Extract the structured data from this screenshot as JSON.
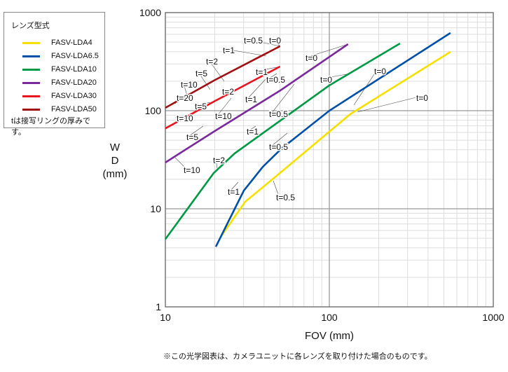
{
  "chart_data": {
    "type": "line",
    "xscale": "log",
    "yscale": "log",
    "xlabel": "FOV (mm)",
    "ylabel": [
      "W",
      "D",
      "(mm)"
    ],
    "xlim": [
      10,
      1000
    ],
    "ylim": [
      1,
      1000
    ],
    "xticks": [
      "10",
      "100",
      "1000"
    ],
    "yticks": [
      "1",
      "10",
      "100",
      "1000"
    ],
    "grid": true,
    "legend_title": "レンズ型式",
    "legend_position": "top-left outside",
    "legend_note": "tは接写リングの厚みです。",
    "series": [
      {
        "name": "FASV-LDA4",
        "color": "#f5e000",
        "points": [
          [
            22,
            5.3
          ],
          [
            30.7,
            11.8
          ],
          [
            40.4,
            17.2
          ],
          [
            61,
            30.6
          ],
          [
            134,
            92
          ],
          [
            548,
            398
          ]
        ]
      },
      {
        "name": "FASV-LDA6.5",
        "color": "#0050a8",
        "points": [
          [
            20.3,
            4.1
          ],
          [
            26.5,
            10
          ],
          [
            30.1,
            15.3
          ],
          [
            39.3,
            26.8
          ],
          [
            51,
            41
          ],
          [
            100,
            100
          ],
          [
            548,
            621
          ]
        ]
      },
      {
        "name": "FASV-LDA10",
        "color": "#009a44",
        "points": [
          [
            10,
            4.9
          ],
          [
            19.7,
            23.1
          ],
          [
            26.5,
            36.7
          ],
          [
            100,
            181
          ],
          [
            270,
            485
          ]
        ]
      },
      {
        "name": "FASV-LDA20",
        "color": "#7a2a9a",
        "points": [
          [
            10,
            29.6
          ],
          [
            12,
            36
          ],
          [
            20,
            62
          ],
          [
            50,
            160
          ],
          [
            130,
            477
          ]
        ]
      },
      {
        "name": "FASV-LDA30",
        "color": "#e8141e",
        "points": [
          [
            10,
            66
          ],
          [
            20,
            125
          ],
          [
            50,
            282
          ]
        ]
      },
      {
        "name": "FASV-LDA50",
        "color": "#a01010",
        "points": [
          [
            10,
            107
          ],
          [
            20,
            205
          ],
          [
            50,
            454
          ]
        ]
      }
    ],
    "annotations": [
      "t=0.5",
      "t=0",
      "t=1",
      "t=2",
      "t=5",
      "t=10",
      "t=20",
      "t=10",
      "t=1",
      "t=0.5",
      "t=2",
      "t=5",
      "t=1",
      "t=10",
      "t=5",
      "t=10",
      "t=0.5",
      "t=1",
      "t=0.5",
      "t=2",
      "t=0",
      "t=0",
      "t=0",
      "t=0",
      "t=1",
      "t=0.5"
    ]
  },
  "footnote": "※この光学図表は、カメラユニットに各レンズを取り付けた場合のものです。"
}
